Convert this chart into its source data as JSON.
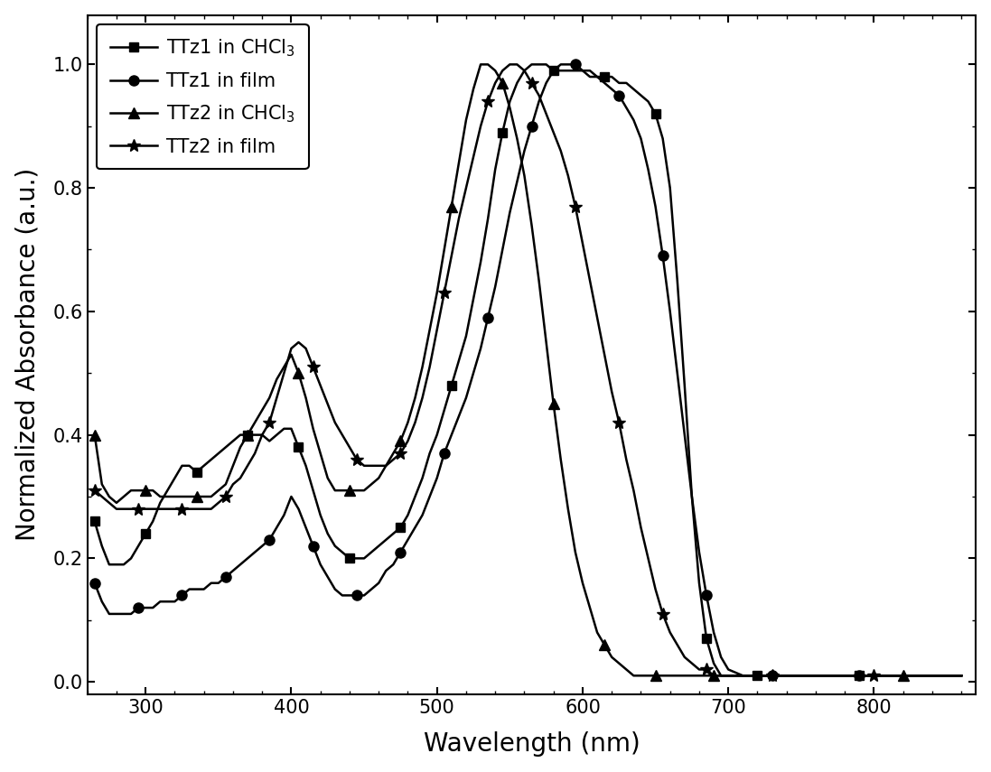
{
  "title": "",
  "xlabel": "Wavelength (nm)",
  "ylabel": "Normalized Absorbance (a.u.)",
  "xlim": [
    260,
    870
  ],
  "ylim": [
    -0.02,
    1.08
  ],
  "xticks": [
    300,
    400,
    500,
    600,
    700,
    800
  ],
  "yticks": [
    0.0,
    0.2,
    0.4,
    0.6,
    0.8,
    1.0
  ],
  "series": [
    {
      "label": "TTz1 in CHCl$_3$",
      "marker": "s",
      "color": "#000000",
      "x": [
        265,
        270,
        275,
        280,
        285,
        290,
        295,
        300,
        305,
        310,
        315,
        320,
        325,
        330,
        335,
        340,
        345,
        350,
        355,
        360,
        365,
        370,
        375,
        380,
        385,
        390,
        395,
        400,
        405,
        410,
        415,
        420,
        425,
        430,
        435,
        440,
        445,
        450,
        455,
        460,
        465,
        470,
        475,
        480,
        485,
        490,
        495,
        500,
        505,
        510,
        515,
        520,
        525,
        530,
        535,
        540,
        545,
        550,
        555,
        560,
        565,
        570,
        575,
        580,
        585,
        590,
        595,
        600,
        605,
        610,
        615,
        620,
        625,
        630,
        635,
        640,
        645,
        650,
        655,
        660,
        665,
        670,
        675,
        680,
        685,
        690,
        695,
        700,
        705,
        710,
        715,
        720,
        730,
        740,
        750,
        760,
        770,
        780,
        790,
        800,
        820,
        840,
        860
      ],
      "y": [
        0.26,
        0.22,
        0.19,
        0.19,
        0.19,
        0.2,
        0.22,
        0.24,
        0.26,
        0.29,
        0.31,
        0.33,
        0.35,
        0.35,
        0.34,
        0.35,
        0.36,
        0.37,
        0.38,
        0.39,
        0.4,
        0.4,
        0.4,
        0.4,
        0.39,
        0.4,
        0.41,
        0.41,
        0.38,
        0.35,
        0.31,
        0.27,
        0.24,
        0.22,
        0.21,
        0.2,
        0.2,
        0.2,
        0.21,
        0.22,
        0.23,
        0.24,
        0.25,
        0.27,
        0.3,
        0.33,
        0.37,
        0.4,
        0.44,
        0.48,
        0.52,
        0.56,
        0.62,
        0.68,
        0.75,
        0.83,
        0.89,
        0.94,
        0.97,
        0.99,
        1.0,
        1.0,
        1.0,
        0.99,
        0.99,
        0.99,
        0.99,
        0.99,
        0.98,
        0.98,
        0.98,
        0.98,
        0.97,
        0.97,
        0.96,
        0.95,
        0.94,
        0.92,
        0.88,
        0.8,
        0.65,
        0.48,
        0.3,
        0.16,
        0.07,
        0.03,
        0.01,
        0.01,
        0.01,
        0.01,
        0.01,
        0.01,
        0.01,
        0.01,
        0.01,
        0.01,
        0.01,
        0.01,
        0.01,
        0.01,
        0.01,
        0.01,
        0.01
      ]
    },
    {
      "label": "TTz1 in film",
      "marker": "o",
      "color": "#000000",
      "x": [
        265,
        270,
        275,
        280,
        285,
        290,
        295,
        300,
        305,
        310,
        315,
        320,
        325,
        330,
        335,
        340,
        345,
        350,
        355,
        360,
        365,
        370,
        375,
        380,
        385,
        390,
        395,
        400,
        405,
        410,
        415,
        420,
        425,
        430,
        435,
        440,
        445,
        450,
        455,
        460,
        465,
        470,
        475,
        480,
        485,
        490,
        495,
        500,
        505,
        510,
        515,
        520,
        525,
        530,
        535,
        540,
        545,
        550,
        555,
        560,
        565,
        570,
        575,
        580,
        585,
        590,
        595,
        600,
        605,
        610,
        615,
        620,
        625,
        630,
        635,
        640,
        645,
        650,
        655,
        660,
        665,
        670,
        675,
        680,
        685,
        690,
        695,
        700,
        710,
        720,
        730,
        740,
        750,
        760,
        770,
        780,
        790,
        800,
        820,
        840,
        860
      ],
      "y": [
        0.16,
        0.13,
        0.11,
        0.11,
        0.11,
        0.11,
        0.12,
        0.12,
        0.12,
        0.13,
        0.13,
        0.13,
        0.14,
        0.15,
        0.15,
        0.15,
        0.16,
        0.16,
        0.17,
        0.18,
        0.19,
        0.2,
        0.21,
        0.22,
        0.23,
        0.25,
        0.27,
        0.3,
        0.28,
        0.25,
        0.22,
        0.19,
        0.17,
        0.15,
        0.14,
        0.14,
        0.14,
        0.14,
        0.15,
        0.16,
        0.18,
        0.19,
        0.21,
        0.23,
        0.25,
        0.27,
        0.3,
        0.33,
        0.37,
        0.4,
        0.43,
        0.46,
        0.5,
        0.54,
        0.59,
        0.64,
        0.7,
        0.76,
        0.81,
        0.86,
        0.9,
        0.94,
        0.97,
        0.99,
        1.0,
        1.0,
        1.0,
        0.99,
        0.99,
        0.98,
        0.97,
        0.96,
        0.95,
        0.93,
        0.91,
        0.88,
        0.83,
        0.77,
        0.69,
        0.6,
        0.5,
        0.4,
        0.3,
        0.21,
        0.14,
        0.08,
        0.04,
        0.02,
        0.01,
        0.01,
        0.01,
        0.01,
        0.01,
        0.01,
        0.01,
        0.01,
        0.01,
        0.01,
        0.01,
        0.01,
        0.01
      ]
    },
    {
      "label": "TTz2 in CHCl$_3$",
      "marker": "^",
      "color": "#000000",
      "x": [
        265,
        270,
        275,
        280,
        285,
        290,
        295,
        300,
        305,
        310,
        315,
        320,
        325,
        330,
        335,
        340,
        345,
        350,
        355,
        360,
        365,
        370,
        375,
        380,
        385,
        390,
        395,
        400,
        405,
        410,
        415,
        420,
        425,
        430,
        435,
        440,
        445,
        450,
        455,
        460,
        465,
        470,
        475,
        480,
        485,
        490,
        495,
        500,
        505,
        510,
        515,
        520,
        525,
        530,
        535,
        540,
        545,
        550,
        555,
        560,
        565,
        570,
        575,
        580,
        585,
        590,
        595,
        600,
        605,
        610,
        615,
        620,
        625,
        630,
        635,
        640,
        645,
        650,
        655,
        660,
        665,
        670,
        675,
        680,
        690,
        700,
        720,
        740,
        760,
        780,
        800,
        820,
        840,
        860
      ],
      "y": [
        0.4,
        0.32,
        0.3,
        0.29,
        0.3,
        0.31,
        0.31,
        0.31,
        0.31,
        0.3,
        0.3,
        0.3,
        0.3,
        0.3,
        0.3,
        0.3,
        0.3,
        0.31,
        0.32,
        0.35,
        0.38,
        0.4,
        0.42,
        0.44,
        0.46,
        0.49,
        0.51,
        0.53,
        0.5,
        0.46,
        0.41,
        0.37,
        0.33,
        0.31,
        0.31,
        0.31,
        0.31,
        0.31,
        0.32,
        0.33,
        0.35,
        0.37,
        0.39,
        0.42,
        0.46,
        0.51,
        0.57,
        0.63,
        0.7,
        0.77,
        0.84,
        0.91,
        0.96,
        1.0,
        1.0,
        0.99,
        0.97,
        0.93,
        0.88,
        0.82,
        0.74,
        0.65,
        0.55,
        0.45,
        0.36,
        0.28,
        0.21,
        0.16,
        0.12,
        0.08,
        0.06,
        0.04,
        0.03,
        0.02,
        0.01,
        0.01,
        0.01,
        0.01,
        0.01,
        0.01,
        0.01,
        0.01,
        0.01,
        0.01,
        0.01,
        0.01,
        0.01,
        0.01,
        0.01,
        0.01,
        0.01,
        0.01,
        0.01,
        0.01
      ]
    },
    {
      "label": "TTz2 in film",
      "marker": "*",
      "color": "#000000",
      "x": [
        265,
        270,
        275,
        280,
        285,
        290,
        295,
        300,
        305,
        310,
        315,
        320,
        325,
        330,
        335,
        340,
        345,
        350,
        355,
        360,
        365,
        370,
        375,
        380,
        385,
        390,
        395,
        400,
        405,
        410,
        415,
        420,
        425,
        430,
        435,
        440,
        445,
        450,
        455,
        460,
        465,
        470,
        475,
        480,
        485,
        490,
        495,
        500,
        505,
        510,
        515,
        520,
        525,
        530,
        535,
        540,
        545,
        550,
        555,
        560,
        565,
        570,
        575,
        580,
        585,
        590,
        595,
        600,
        605,
        610,
        615,
        620,
        625,
        630,
        635,
        640,
        645,
        650,
        655,
        660,
        665,
        670,
        675,
        680,
        685,
        690,
        695,
        700,
        710,
        720,
        730,
        740,
        750,
        760,
        770,
        780,
        800,
        820,
        840,
        860
      ],
      "y": [
        0.31,
        0.3,
        0.29,
        0.28,
        0.28,
        0.28,
        0.28,
        0.28,
        0.28,
        0.28,
        0.28,
        0.28,
        0.28,
        0.28,
        0.28,
        0.28,
        0.28,
        0.29,
        0.3,
        0.32,
        0.33,
        0.35,
        0.37,
        0.4,
        0.42,
        0.46,
        0.5,
        0.54,
        0.55,
        0.54,
        0.51,
        0.48,
        0.45,
        0.42,
        0.4,
        0.38,
        0.36,
        0.35,
        0.35,
        0.35,
        0.35,
        0.36,
        0.37,
        0.39,
        0.42,
        0.46,
        0.51,
        0.57,
        0.63,
        0.69,
        0.75,
        0.8,
        0.85,
        0.9,
        0.94,
        0.97,
        0.99,
        1.0,
        1.0,
        0.99,
        0.97,
        0.95,
        0.92,
        0.89,
        0.86,
        0.82,
        0.77,
        0.71,
        0.65,
        0.59,
        0.53,
        0.47,
        0.42,
        0.36,
        0.31,
        0.25,
        0.2,
        0.15,
        0.11,
        0.08,
        0.06,
        0.04,
        0.03,
        0.02,
        0.02,
        0.01,
        0.01,
        0.01,
        0.01,
        0.01,
        0.01,
        0.01,
        0.01,
        0.01,
        0.01,
        0.01,
        0.01,
        0.01,
        0.01,
        0.01
      ]
    }
  ],
  "marker_every": [
    7,
    6,
    7,
    6
  ],
  "markersize": [
    7,
    8,
    8,
    10
  ],
  "linewidth": 1.8,
  "legend_loc": "upper left",
  "legend_fontsize": 15,
  "axis_fontsize": 20,
  "tick_fontsize": 15,
  "background_color": "#ffffff",
  "figure_size": [
    10.97,
    8.55
  ],
  "dpi": 100
}
